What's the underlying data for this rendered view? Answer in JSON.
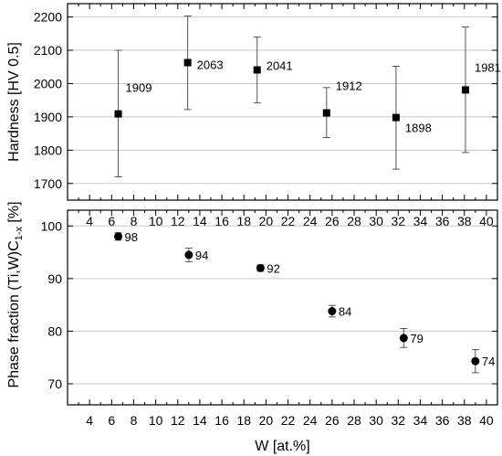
{
  "chart_data": [
    {
      "type": "scatter",
      "panel": "top",
      "ylabel": "Hardness [HV 0.5]",
      "ylim": [
        1650,
        2240
      ],
      "yticks": [
        1700,
        1800,
        1900,
        2000,
        2100,
        2200
      ],
      "xlim": [
        2,
        41
      ],
      "xticks": [
        4,
        6,
        8,
        10,
        12,
        14,
        16,
        18,
        20,
        22,
        24,
        26,
        28,
        30,
        32,
        34,
        36,
        38,
        40
      ],
      "xtick_position": "top",
      "grid": "horizontal",
      "marker": "square",
      "color": "#000000",
      "points": [
        {
          "x": 6.6,
          "y": 1909,
          "err_low": 1720,
          "err_high": 2100,
          "label": "1909"
        },
        {
          "x": 12.9,
          "y": 2063,
          "err_low": 1922,
          "err_high": 2203,
          "label": "2063"
        },
        {
          "x": 19.2,
          "y": 2041,
          "err_low": 1942,
          "err_high": 2140,
          "label": "2041"
        },
        {
          "x": 25.5,
          "y": 1912,
          "err_low": 1838,
          "err_high": 1988,
          "label": "1912"
        },
        {
          "x": 31.8,
          "y": 1898,
          "err_low": 1743,
          "err_high": 2052,
          "label": "1898"
        },
        {
          "x": 38.1,
          "y": 1981,
          "err_low": 1793,
          "err_high": 2170,
          "label": "1981"
        }
      ]
    },
    {
      "type": "scatter",
      "panel": "bottom",
      "xlabel": "W [at.%]",
      "ylabel_main": "Phase fraction (Ti,W)C",
      "ylabel_sub": "1-x",
      "ylabel_suffix": " [%]",
      "ylim": [
        66,
        103
      ],
      "yticks": [
        70,
        80,
        90,
        100
      ],
      "xlim": [
        2,
        41
      ],
      "xticks": [
        4,
        6,
        8,
        10,
        12,
        14,
        16,
        18,
        20,
        22,
        24,
        26,
        28,
        30,
        32,
        34,
        36,
        38,
        40
      ],
      "grid": "horizontal",
      "marker": "circle",
      "color": "#000000",
      "points": [
        {
          "x": 6.6,
          "y": 98,
          "err_low": 97.3,
          "err_high": 98.7,
          "label": "98"
        },
        {
          "x": 13.0,
          "y": 94.5,
          "err_low": 93.2,
          "err_high": 95.8,
          "label": "94"
        },
        {
          "x": 19.5,
          "y": 92,
          "err_low": 91.4,
          "err_high": 92.6,
          "label": "92"
        },
        {
          "x": 26.0,
          "y": 83.8,
          "err_low": 82.7,
          "err_high": 84.9,
          "label": "84"
        },
        {
          "x": 32.5,
          "y": 78.7,
          "err_low": 76.9,
          "err_high": 80.5,
          "label": "79"
        },
        {
          "x": 39.0,
          "y": 74.3,
          "err_low": 72.1,
          "err_high": 76.5,
          "label": "74"
        }
      ]
    }
  ]
}
